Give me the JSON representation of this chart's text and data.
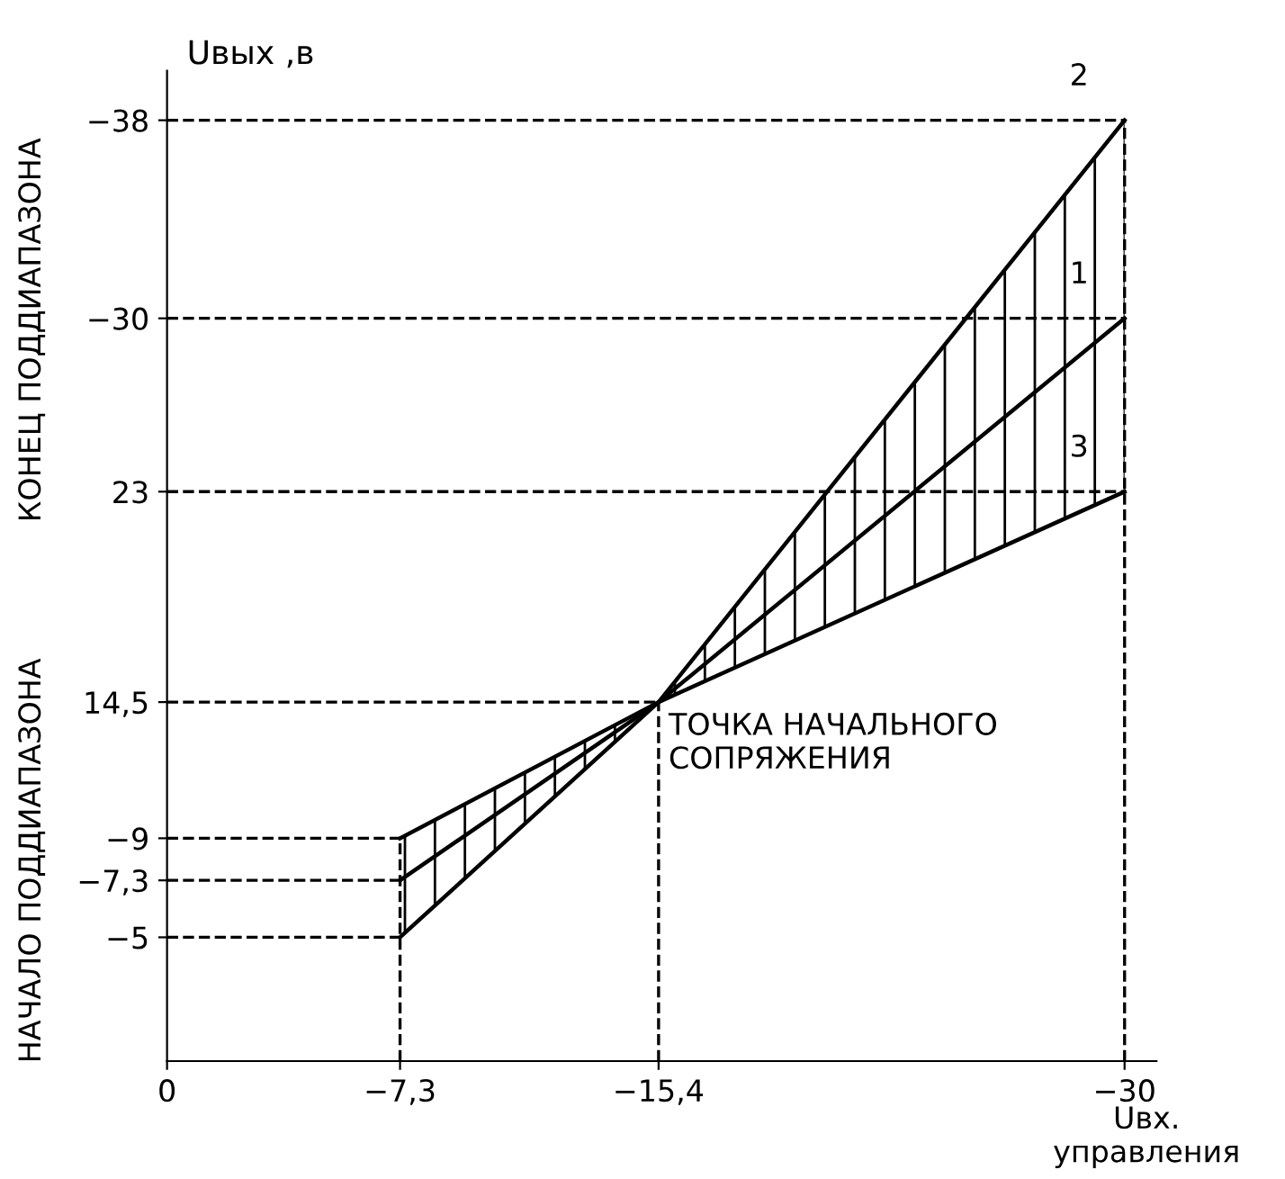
{
  "chart_data": {
    "type": "line",
    "ylabel": "Uвых ,в",
    "xlabel": "Uвх. управления",
    "x": [
      -7.3,
      -15.4,
      -30
    ],
    "series": [
      {
        "name": "1",
        "color": "#000000",
        "values": [
          -7.3,
          -14.5,
          -30
        ],
        "lower": [
          -9,
          -14.5,
          -23
        ],
        "upper": [
          -5,
          -14.5,
          -38
        ]
      },
      {
        "name": "2",
        "color": "#000000",
        "values": [
          -5,
          -14.5,
          -38
        ]
      },
      {
        "name": "3",
        "color": "#000000",
        "values": [
          -9,
          -14.5,
          -23
        ]
      }
    ],
    "xlim": [
      0,
      -31
    ],
    "ylim": [
      0,
      -40
    ],
    "xticks": [
      0,
      {
        "value": -7.3,
        "label": "−7,3"
      },
      {
        "value": -15.4,
        "label": "−15,4"
      },
      {
        "value": -30,
        "label": "−30"
      }
    ],
    "yticks": [
      {
        "value": -5,
        "label": "−5"
      },
      {
        "value": -7.3,
        "label": "−7,3"
      },
      {
        "value": -9,
        "label": "−9"
      },
      {
        "value": -14.5,
        "label": "14,5"
      },
      {
        "value": -23,
        "label": "23"
      },
      {
        "value": -30,
        "label": "−30"
      },
      {
        "value": -38,
        "label": "−38"
      }
    ],
    "ref_lines": [
      {
        "axis": "y",
        "value": -38,
        "line_style": "dashed"
      },
      {
        "axis": "y",
        "value": -30,
        "line_style": "dashed"
      },
      {
        "axis": "y",
        "value": -23,
        "line_style": "dashed"
      },
      {
        "axis": "y",
        "value": -14.5,
        "line_style": "dashed"
      },
      {
        "axis": "y",
        "value": -9,
        "line_style": "dashed"
      },
      {
        "axis": "y",
        "value": -7.3,
        "line_style": "dashed"
      },
      {
        "axis": "y",
        "value": -5,
        "line_style": "dashed"
      },
      {
        "axis": "x",
        "value": -7.3,
        "line_style": "dashed"
      },
      {
        "axis": "x",
        "value": -15.4,
        "line_style": "dashed"
      },
      {
        "axis": "x",
        "value": -30,
        "line_style": "dashed"
      }
    ],
    "annotations": [
      {
        "text": "ТОЧКА НАЧАЛЬНОГО\nСОПРЯЖЕНИЯ",
        "x": -15.4,
        "y": -14.5
      },
      "КОНЕЦ ПОДДИАПАЗОНА",
      "НАЧАЛО ПОДДИАПАЗОНА"
    ],
    "grid": false,
    "marker": "none",
    "line_style": "solid"
  }
}
